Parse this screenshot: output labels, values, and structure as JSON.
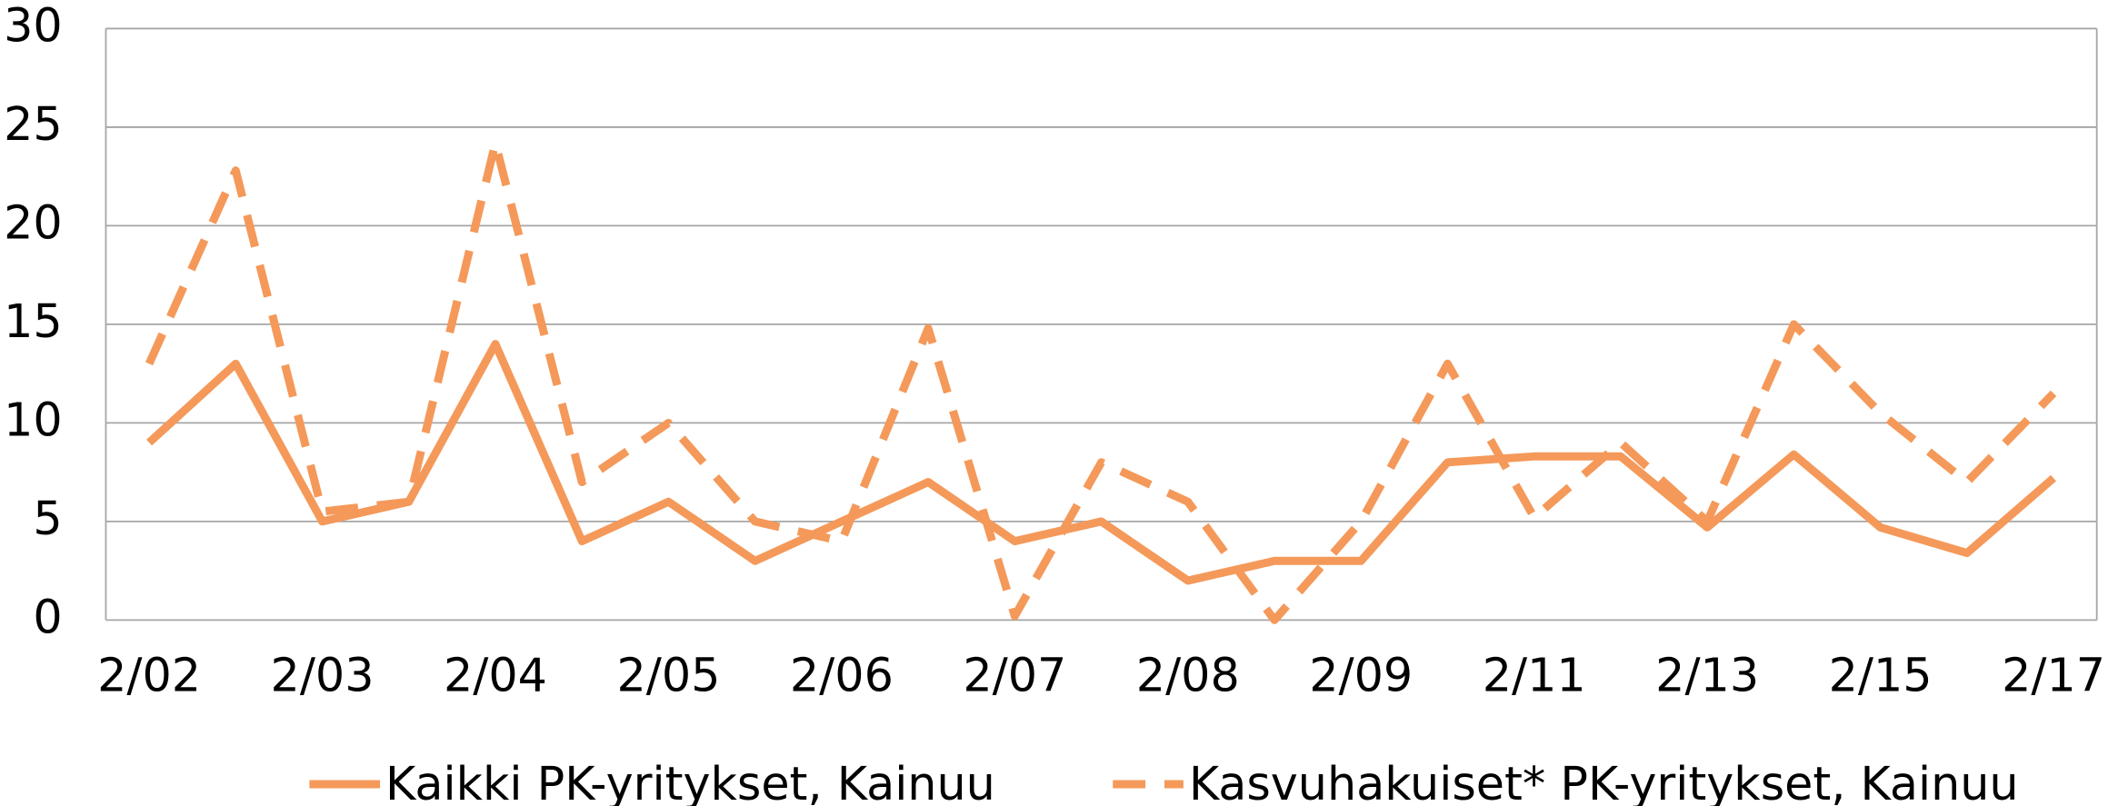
{
  "chart_data": {
    "type": "line",
    "categories": [
      "2/02",
      null,
      "2/03",
      null,
      "2/04",
      null,
      "2/05",
      null,
      "2/06",
      null,
      "2/07",
      null,
      "2/08",
      null,
      "2/09",
      null,
      "2/11",
      null,
      "2/13",
      null,
      "2/15",
      null,
      "2/17"
    ],
    "series": [
      {
        "name": "Kaikki PK-yritykset, Kainuu",
        "color": "#f4995a",
        "dash": false,
        "values": [
          9,
          13,
          5,
          6,
          14,
          4,
          6,
          3,
          5,
          7,
          4,
          5,
          2,
          3,
          3,
          8,
          8.3,
          8.3,
          4.7,
          8.4,
          4.7,
          3.4,
          7.2
        ]
      },
      {
        "name": "Kasvuhakuiset* PK-yritykset, Kainuu",
        "color": "#f4995a",
        "dash": true,
        "values": [
          13,
          22.8,
          5.5,
          6,
          24.2,
          7,
          10,
          5,
          4,
          14.8,
          0.2,
          8,
          6,
          0,
          5,
          13,
          5.2,
          9,
          5,
          15,
          10.5,
          7,
          11.5
        ]
      }
    ],
    "ylim": [
      0,
      30
    ],
    "yticks": [
      0,
      5,
      10,
      15,
      20,
      25,
      30
    ],
    "grid": true
  }
}
